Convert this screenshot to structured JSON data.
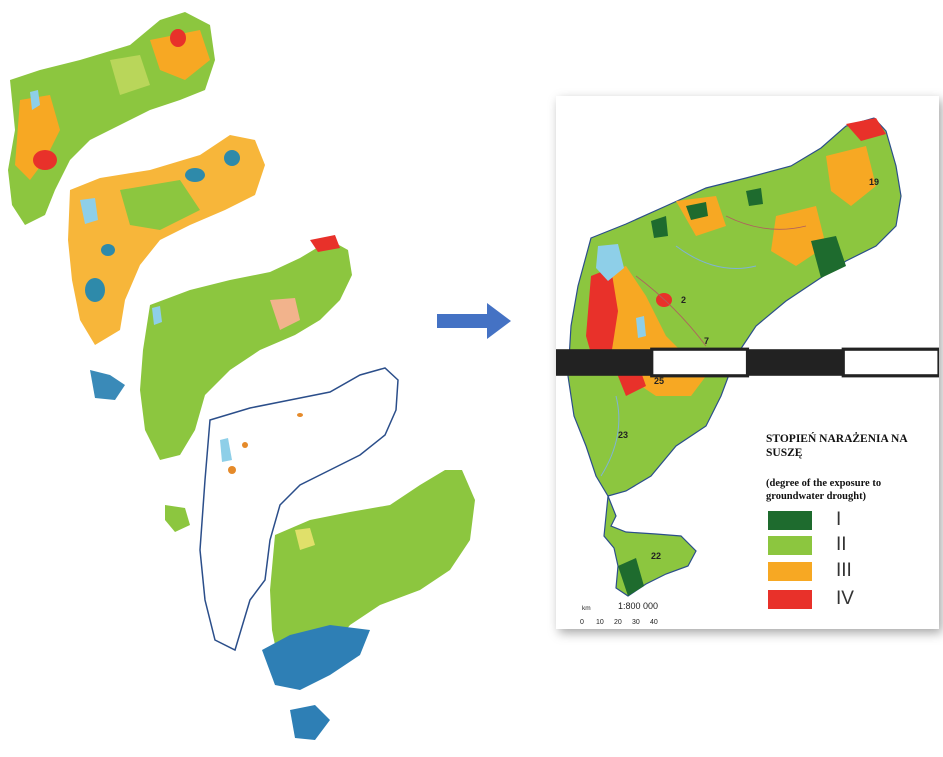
{
  "legend": {
    "title": "STOPIEŃ NARAŻENIA NA SUSZĘ",
    "subtitle": "(degree of the exposure to groundwater  drought)",
    "classes": [
      {
        "label": "I",
        "color": "#1e6b2e"
      },
      {
        "label": "II",
        "color": "#8cc63f"
      },
      {
        "label": "III",
        "color": "#f7a823"
      },
      {
        "label": "IV",
        "color": "#e8312a"
      }
    ]
  },
  "scale": {
    "ratio": "1:800 000",
    "unit": "km",
    "ticks": [
      "0",
      "10",
      "20",
      "30",
      "40"
    ]
  },
  "arrow_color": "#4472c4",
  "map_labels": [
    "19",
    "2",
    "7",
    "25",
    "23",
    "22"
  ]
}
